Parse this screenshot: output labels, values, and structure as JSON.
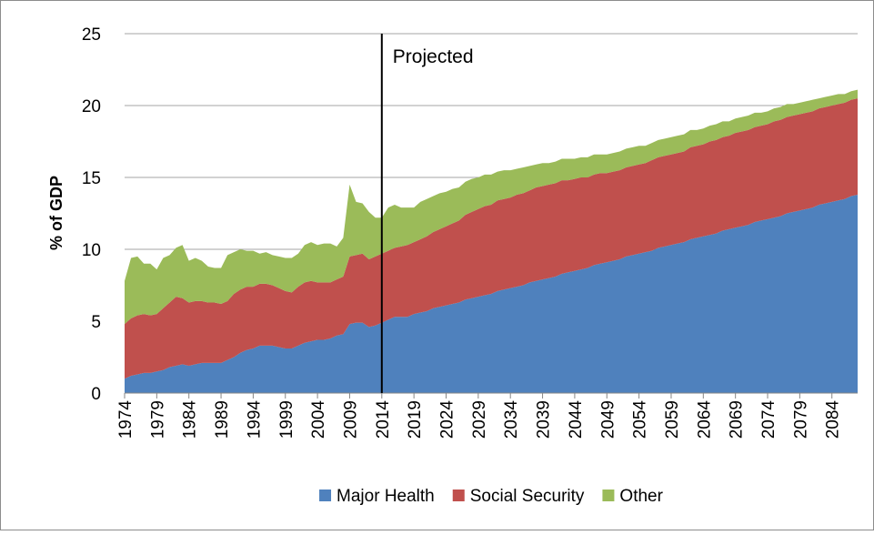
{
  "chart_data": {
    "type": "stacked_area",
    "y_label": "% of GDP",
    "x": [
      1974,
      1975,
      1976,
      1977,
      1978,
      1979,
      1980,
      1981,
      1982,
      1983,
      1984,
      1985,
      1986,
      1987,
      1988,
      1989,
      1990,
      1991,
      1992,
      1993,
      1994,
      1995,
      1996,
      1997,
      1998,
      1999,
      2000,
      2001,
      2002,
      2003,
      2004,
      2005,
      2006,
      2007,
      2008,
      2009,
      2010,
      2011,
      2012,
      2013,
      2014,
      2015,
      2016,
      2017,
      2018,
      2019,
      2020,
      2021,
      2022,
      2023,
      2024,
      2025,
      2026,
      2027,
      2028,
      2029,
      2030,
      2031,
      2032,
      2033,
      2034,
      2035,
      2036,
      2037,
      2038,
      2039,
      2040,
      2041,
      2042,
      2043,
      2044,
      2045,
      2046,
      2047,
      2048,
      2049,
      2050,
      2051,
      2052,
      2053,
      2054,
      2055,
      2056,
      2057,
      2058,
      2059,
      2060,
      2061,
      2062,
      2063,
      2064,
      2065,
      2066,
      2067,
      2068,
      2069,
      2070,
      2071,
      2072,
      2073,
      2074,
      2075,
      2076,
      2077,
      2078,
      2079,
      2080,
      2081,
      2082,
      2083,
      2084,
      2085,
      2086,
      2087,
      2088
    ],
    "xlim": [
      1974,
      2088
    ],
    "xticks": [
      1974,
      1979,
      1984,
      1989,
      1994,
      1999,
      2004,
      2009,
      2014,
      2019,
      2024,
      2029,
      2034,
      2039,
      2044,
      2049,
      2054,
      2059,
      2064,
      2069,
      2074,
      2079,
      2084
    ],
    "ylim": [
      0,
      25
    ],
    "yticks": [
      0,
      5,
      10,
      15,
      20,
      25
    ],
    "grid": true,
    "legend": "bottom",
    "annotations": [
      {
        "text": "Projected",
        "x": 2014
      }
    ],
    "series": [
      {
        "name": "Major Health",
        "color": "#4f81bd",
        "values": [
          1.0,
          1.2,
          1.3,
          1.4,
          1.4,
          1.5,
          1.6,
          1.8,
          1.9,
          2.0,
          1.9,
          2.0,
          2.1,
          2.1,
          2.1,
          2.1,
          2.3,
          2.5,
          2.8,
          3.0,
          3.1,
          3.3,
          3.3,
          3.3,
          3.2,
          3.1,
          3.1,
          3.3,
          3.5,
          3.6,
          3.7,
          3.7,
          3.8,
          4.0,
          4.1,
          4.8,
          4.9,
          4.9,
          4.6,
          4.7,
          4.9,
          5.1,
          5.3,
          5.3,
          5.3,
          5.5,
          5.6,
          5.7,
          5.9,
          6.0,
          6.1,
          6.2,
          6.3,
          6.5,
          6.6,
          6.7,
          6.8,
          6.9,
          7.1,
          7.2,
          7.3,
          7.4,
          7.5,
          7.7,
          7.8,
          7.9,
          8.0,
          8.1,
          8.3,
          8.4,
          8.5,
          8.6,
          8.7,
          8.9,
          9.0,
          9.1,
          9.2,
          9.3,
          9.5,
          9.6,
          9.7,
          9.8,
          9.9,
          10.1,
          10.2,
          10.3,
          10.4,
          10.5,
          10.7,
          10.8,
          10.9,
          11.0,
          11.1,
          11.3,
          11.4,
          11.5,
          11.6,
          11.7,
          11.9,
          12.0,
          12.1,
          12.2,
          12.3,
          12.5,
          12.6,
          12.7,
          12.8,
          12.9,
          13.1,
          13.2,
          13.3,
          13.4,
          13.5,
          13.7,
          13.8
        ]
      },
      {
        "name": "Social Security",
        "color": "#c0504d",
        "values": [
          3.8,
          4.0,
          4.1,
          4.1,
          4.0,
          4.0,
          4.3,
          4.5,
          4.8,
          4.6,
          4.4,
          4.4,
          4.3,
          4.2,
          4.2,
          4.1,
          4.1,
          4.4,
          4.4,
          4.4,
          4.3,
          4.3,
          4.3,
          4.2,
          4.1,
          4.0,
          3.9,
          4.1,
          4.2,
          4.2,
          4.0,
          4.0,
          3.9,
          3.9,
          4.0,
          4.7,
          4.7,
          4.8,
          4.7,
          4.8,
          4.8,
          4.8,
          4.8,
          4.9,
          5.0,
          5.0,
          5.1,
          5.2,
          5.3,
          5.4,
          5.5,
          5.6,
          5.7,
          5.9,
          6.0,
          6.1,
          6.2,
          6.2,
          6.3,
          6.3,
          6.3,
          6.4,
          6.4,
          6.4,
          6.5,
          6.5,
          6.5,
          6.5,
          6.5,
          6.4,
          6.4,
          6.4,
          6.3,
          6.3,
          6.3,
          6.2,
          6.2,
          6.2,
          6.2,
          6.2,
          6.2,
          6.2,
          6.3,
          6.3,
          6.3,
          6.3,
          6.3,
          6.3,
          6.4,
          6.4,
          6.4,
          6.5,
          6.5,
          6.5,
          6.5,
          6.6,
          6.6,
          6.6,
          6.6,
          6.6,
          6.6,
          6.7,
          6.7,
          6.7,
          6.7,
          6.7,
          6.7,
          6.7,
          6.7,
          6.7,
          6.7,
          6.7,
          6.7,
          6.7,
          6.7
        ]
      },
      {
        "name": "Other",
        "color": "#9bbb59",
        "values": [
          3.0,
          4.2,
          4.1,
          3.5,
          3.6,
          3.1,
          3.5,
          3.3,
          3.4,
          3.7,
          2.9,
          3.0,
          2.8,
          2.5,
          2.4,
          2.5,
          3.2,
          2.9,
          2.8,
          2.5,
          2.5,
          2.1,
          2.2,
          2.1,
          2.2,
          2.3,
          2.4,
          2.3,
          2.6,
          2.7,
          2.6,
          2.7,
          2.7,
          2.3,
          2.7,
          5.0,
          3.7,
          3.5,
          3.3,
          2.7,
          2.5,
          3.0,
          3.0,
          2.7,
          2.6,
          2.4,
          2.6,
          2.6,
          2.5,
          2.5,
          2.4,
          2.4,
          2.3,
          2.3,
          2.3,
          2.2,
          2.2,
          2.1,
          2.0,
          2.0,
          1.9,
          1.8,
          1.8,
          1.7,
          1.6,
          1.6,
          1.5,
          1.5,
          1.5,
          1.5,
          1.4,
          1.4,
          1.4,
          1.4,
          1.3,
          1.3,
          1.3,
          1.3,
          1.3,
          1.3,
          1.3,
          1.2,
          1.2,
          1.2,
          1.2,
          1.2,
          1.2,
          1.2,
          1.2,
          1.1,
          1.1,
          1.1,
          1.1,
          1.1,
          1.0,
          1.0,
          1.0,
          1.0,
          1.0,
          0.9,
          0.9,
          0.9,
          0.9,
          0.9,
          0.8,
          0.8,
          0.8,
          0.8,
          0.7,
          0.7,
          0.7,
          0.7,
          0.6,
          0.6,
          0.6
        ]
      }
    ]
  }
}
